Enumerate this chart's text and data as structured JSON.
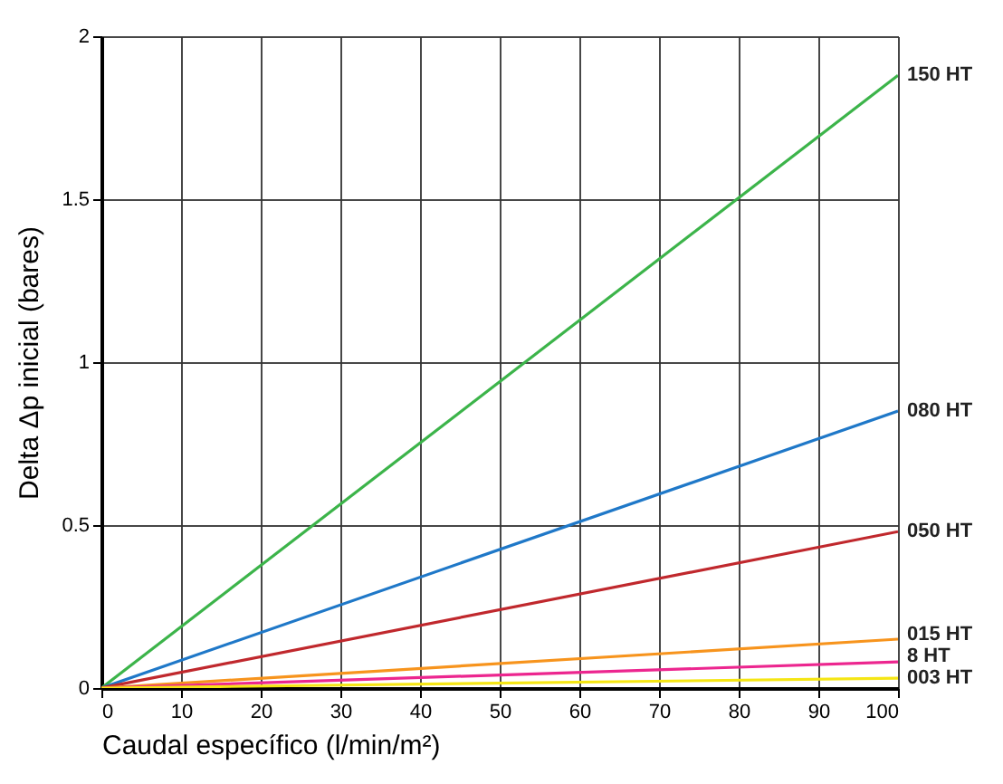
{
  "chart_data": {
    "type": "line",
    "xlabel": "Caudal específico (l/min/m²)",
    "ylabel": "Delta Δp inicial (bares)",
    "x": [
      0,
      100
    ],
    "series": [
      {
        "name": "150 HT",
        "color": "#3cb44a",
        "values": [
          0,
          1.88
        ]
      },
      {
        "name": "080 HT",
        "color": "#1f78c8",
        "values": [
          0,
          0.85
        ]
      },
      {
        "name": "050 HT",
        "color": "#c0282d",
        "values": [
          0,
          0.48
        ]
      },
      {
        "name": "015 HT",
        "color": "#f7941d",
        "values": [
          0,
          0.15
        ]
      },
      {
        "name": "8 HT",
        "color": "#ec268f",
        "values": [
          0,
          0.08
        ]
      },
      {
        "name": "003 HT",
        "color": "#f5e614",
        "values": [
          0,
          0.03
        ]
      }
    ],
    "xlim": [
      0,
      100
    ],
    "xticks": [
      0,
      10,
      20,
      30,
      40,
      50,
      60,
      70,
      80,
      90,
      100
    ],
    "ylim": [
      0,
      2
    ],
    "yticks": [
      0,
      0.5,
      1,
      1.5,
      2
    ],
    "grid": true,
    "legend": false,
    "marker": "none",
    "line_style": "solid"
  }
}
